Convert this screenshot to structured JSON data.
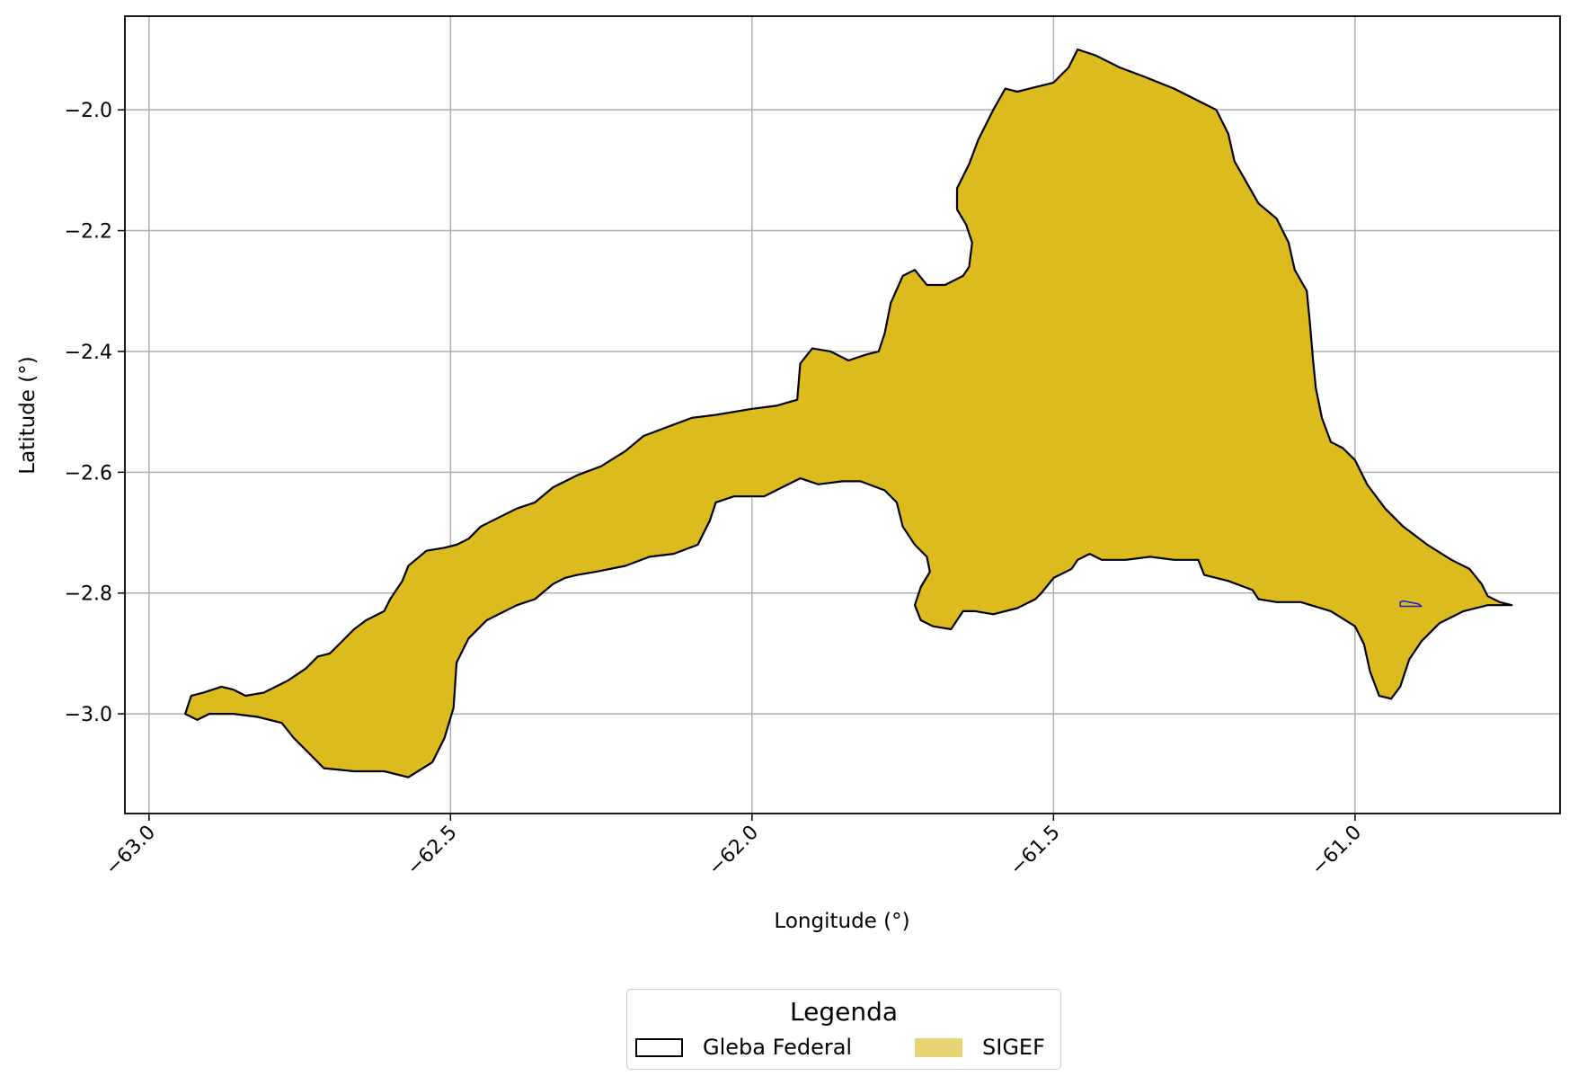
{
  "chart_data": {
    "type": "map",
    "xlabel": "Longitude (°)",
    "ylabel": "Latitude (°)",
    "xlim": [
      -63.04,
      -60.66
    ],
    "ylim": [
      -3.165,
      -1.845
    ],
    "grid": true,
    "xticks": [
      -63.0,
      -62.5,
      -62.0,
      -61.5,
      -61.0
    ],
    "xtick_labels": [
      "−63.0",
      "−62.5",
      "−62.0",
      "−61.5",
      "−61.0"
    ],
    "yticks": [
      -2.0,
      -2.2,
      -2.4,
      -2.6,
      -2.8,
      -3.0
    ],
    "ytick_labels": [
      "−2.0",
      "−2.2",
      "−2.4",
      "−2.6",
      "−2.8",
      "−3.0"
    ],
    "colors": {
      "polygon_fill": "#dcbb1e",
      "polygon_edge": "#000000",
      "small_feature": "#2222cc",
      "grid": "#b0b0b0"
    },
    "regions": [
      {
        "name": "Gleba Federal",
        "coords": [
          [
            -62.94,
            -3.0
          ],
          [
            -62.93,
            -2.97
          ],
          [
            -62.91,
            -2.965
          ],
          [
            -62.88,
            -2.955
          ],
          [
            -62.86,
            -2.96
          ],
          [
            -62.84,
            -2.97
          ],
          [
            -62.81,
            -2.965
          ],
          [
            -62.77,
            -2.945
          ],
          [
            -62.74,
            -2.925
          ],
          [
            -62.72,
            -2.905
          ],
          [
            -62.7,
            -2.9
          ],
          [
            -62.68,
            -2.88
          ],
          [
            -62.66,
            -2.86
          ],
          [
            -62.64,
            -2.845
          ],
          [
            -62.61,
            -2.83
          ],
          [
            -62.6,
            -2.81
          ],
          [
            -62.58,
            -2.78
          ],
          [
            -62.57,
            -2.755
          ],
          [
            -62.54,
            -2.73
          ],
          [
            -62.51,
            -2.725
          ],
          [
            -62.49,
            -2.72
          ],
          [
            -62.47,
            -2.71
          ],
          [
            -62.45,
            -2.69
          ],
          [
            -62.42,
            -2.675
          ],
          [
            -62.39,
            -2.66
          ],
          [
            -62.36,
            -2.65
          ],
          [
            -62.33,
            -2.625
          ],
          [
            -62.29,
            -2.605
          ],
          [
            -62.25,
            -2.59
          ],
          [
            -62.21,
            -2.565
          ],
          [
            -62.18,
            -2.54
          ],
          [
            -62.14,
            -2.525
          ],
          [
            -62.1,
            -2.51
          ],
          [
            -62.06,
            -2.505
          ],
          [
            -62.0,
            -2.495
          ],
          [
            -61.96,
            -2.49
          ],
          [
            -61.925,
            -2.48
          ],
          [
            -61.92,
            -2.42
          ],
          [
            -61.9,
            -2.395
          ],
          [
            -61.87,
            -2.4
          ],
          [
            -61.84,
            -2.415
          ],
          [
            -61.81,
            -2.405
          ],
          [
            -61.79,
            -2.4
          ],
          [
            -61.78,
            -2.37
          ],
          [
            -61.77,
            -2.32
          ],
          [
            -61.75,
            -2.275
          ],
          [
            -61.73,
            -2.265
          ],
          [
            -61.71,
            -2.29
          ],
          [
            -61.68,
            -2.29
          ],
          [
            -61.65,
            -2.275
          ],
          [
            -61.64,
            -2.26
          ],
          [
            -61.635,
            -2.22
          ],
          [
            -61.645,
            -2.19
          ],
          [
            -61.66,
            -2.165
          ],
          [
            -61.66,
            -2.13
          ],
          [
            -61.64,
            -2.09
          ],
          [
            -61.625,
            -2.05
          ],
          [
            -61.6,
            -2.0
          ],
          [
            -61.58,
            -1.965
          ],
          [
            -61.56,
            -1.97
          ],
          [
            -61.54,
            -1.965
          ],
          [
            -61.5,
            -1.955
          ],
          [
            -61.475,
            -1.93
          ],
          [
            -61.46,
            -1.9
          ],
          [
            -61.43,
            -1.91
          ],
          [
            -61.39,
            -1.93
          ],
          [
            -61.35,
            -1.945
          ],
          [
            -61.3,
            -1.965
          ],
          [
            -61.26,
            -1.985
          ],
          [
            -61.23,
            -2.0
          ],
          [
            -61.21,
            -2.04
          ],
          [
            -61.2,
            -2.085
          ],
          [
            -61.18,
            -2.12
          ],
          [
            -61.16,
            -2.155
          ],
          [
            -61.13,
            -2.18
          ],
          [
            -61.11,
            -2.22
          ],
          [
            -61.1,
            -2.265
          ],
          [
            -61.08,
            -2.3
          ],
          [
            -61.075,
            -2.35
          ],
          [
            -61.07,
            -2.41
          ],
          [
            -61.065,
            -2.46
          ],
          [
            -61.055,
            -2.51
          ],
          [
            -61.04,
            -2.55
          ],
          [
            -61.02,
            -2.56
          ],
          [
            -61.0,
            -2.58
          ],
          [
            -60.98,
            -2.62
          ],
          [
            -60.95,
            -2.66
          ],
          [
            -60.92,
            -2.69
          ],
          [
            -60.88,
            -2.72
          ],
          [
            -60.84,
            -2.745
          ],
          [
            -60.81,
            -2.76
          ],
          [
            -60.79,
            -2.785
          ],
          [
            -60.78,
            -2.805
          ],
          [
            -60.76,
            -2.815
          ],
          [
            -60.74,
            -2.82
          ],
          [
            -60.78,
            -2.82
          ],
          [
            -60.82,
            -2.83
          ],
          [
            -60.86,
            -2.85
          ],
          [
            -60.89,
            -2.88
          ],
          [
            -60.91,
            -2.91
          ],
          [
            -60.925,
            -2.955
          ],
          [
            -60.94,
            -2.975
          ],
          [
            -60.96,
            -2.97
          ],
          [
            -60.975,
            -2.93
          ],
          [
            -60.985,
            -2.885
          ],
          [
            -61.0,
            -2.855
          ],
          [
            -61.04,
            -2.83
          ],
          [
            -61.09,
            -2.815
          ],
          [
            -61.13,
            -2.815
          ],
          [
            -61.16,
            -2.81
          ],
          [
            -61.17,
            -2.795
          ],
          [
            -61.21,
            -2.78
          ],
          [
            -61.25,
            -2.77
          ],
          [
            -61.26,
            -2.745
          ],
          [
            -61.3,
            -2.745
          ],
          [
            -61.34,
            -2.74
          ],
          [
            -61.38,
            -2.745
          ],
          [
            -61.42,
            -2.745
          ],
          [
            -61.44,
            -2.735
          ],
          [
            -61.46,
            -2.745
          ],
          [
            -61.47,
            -2.76
          ],
          [
            -61.5,
            -2.775
          ],
          [
            -61.52,
            -2.8
          ],
          [
            -61.53,
            -2.81
          ],
          [
            -61.56,
            -2.825
          ],
          [
            -61.6,
            -2.835
          ],
          [
            -61.63,
            -2.83
          ],
          [
            -61.65,
            -2.83
          ],
          [
            -61.67,
            -2.86
          ],
          [
            -61.7,
            -2.855
          ],
          [
            -61.72,
            -2.845
          ],
          [
            -61.73,
            -2.82
          ],
          [
            -61.72,
            -2.79
          ],
          [
            -61.705,
            -2.765
          ],
          [
            -61.71,
            -2.74
          ],
          [
            -61.73,
            -2.72
          ],
          [
            -61.75,
            -2.69
          ],
          [
            -61.76,
            -2.65
          ],
          [
            -61.78,
            -2.63
          ],
          [
            -61.82,
            -2.615
          ],
          [
            -61.85,
            -2.615
          ],
          [
            -61.89,
            -2.62
          ],
          [
            -61.92,
            -2.61
          ],
          [
            -61.95,
            -2.625
          ],
          [
            -61.98,
            -2.64
          ],
          [
            -62.03,
            -2.64
          ],
          [
            -62.06,
            -2.65
          ],
          [
            -62.07,
            -2.68
          ],
          [
            -62.09,
            -2.72
          ],
          [
            -62.13,
            -2.735
          ],
          [
            -62.17,
            -2.74
          ],
          [
            -62.21,
            -2.755
          ],
          [
            -62.26,
            -2.765
          ],
          [
            -62.29,
            -2.77
          ],
          [
            -62.31,
            -2.775
          ],
          [
            -62.33,
            -2.785
          ],
          [
            -62.36,
            -2.81
          ],
          [
            -62.39,
            -2.82
          ],
          [
            -62.44,
            -2.845
          ],
          [
            -62.47,
            -2.875
          ],
          [
            -62.49,
            -2.915
          ],
          [
            -62.495,
            -2.99
          ],
          [
            -62.51,
            -3.04
          ],
          [
            -62.53,
            -3.08
          ],
          [
            -62.57,
            -3.105
          ],
          [
            -62.61,
            -3.095
          ],
          [
            -62.66,
            -3.095
          ],
          [
            -62.71,
            -3.09
          ],
          [
            -62.74,
            -3.06
          ],
          [
            -62.76,
            -3.04
          ],
          [
            -62.78,
            -3.015
          ],
          [
            -62.82,
            -3.005
          ],
          [
            -62.86,
            -3.0
          ],
          [
            -62.9,
            -3.0
          ],
          [
            -62.92,
            -3.01
          ],
          [
            -62.94,
            -3.0
          ]
        ]
      },
      {
        "name": "",
        "coords": [
          [
            -60.925,
            -2.815
          ],
          [
            -60.92,
            -2.813
          ],
          [
            -60.895,
            -2.818
          ],
          [
            -60.89,
            -2.822
          ],
          [
            -60.925,
            -2.822
          ],
          [
            -60.925,
            -2.815
          ]
        ]
      }
    ],
    "legend": {
      "title": "Legenda",
      "position": "bottom-center",
      "entries": [
        {
          "label": "Gleba Federal",
          "style": "outline"
        },
        {
          "label": "SIGEF",
          "style": "fill",
          "color": "#e8d474"
        }
      ]
    }
  }
}
